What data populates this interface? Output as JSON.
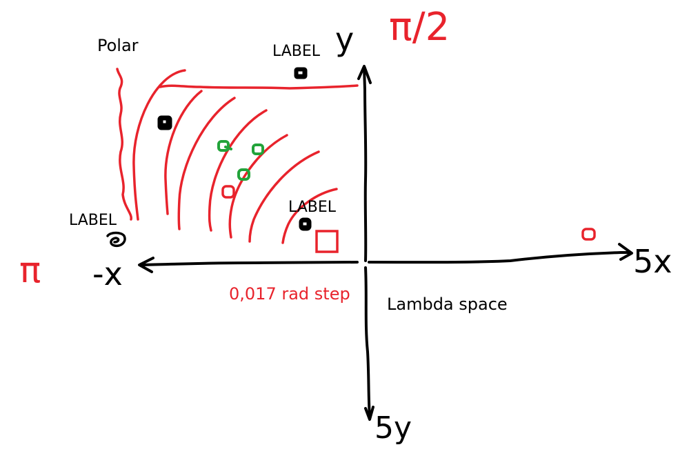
{
  "labels": {
    "polar": "Polar",
    "label_top": "LABEL",
    "label_left": "LABEL",
    "label_middle": "LABEL",
    "lambda_space": "Lambda space",
    "rad_step": "0,017 rad step",
    "axis_y": "y",
    "axis_neg_x": "-x",
    "axis_5x": "5x",
    "axis_5y": "5y",
    "angle_pi_half": "π/2",
    "angle_pi": "π"
  },
  "colors": {
    "ink": "#000000",
    "red": "#e8232c",
    "green": "#22a33a",
    "background": "#ffffff"
  }
}
